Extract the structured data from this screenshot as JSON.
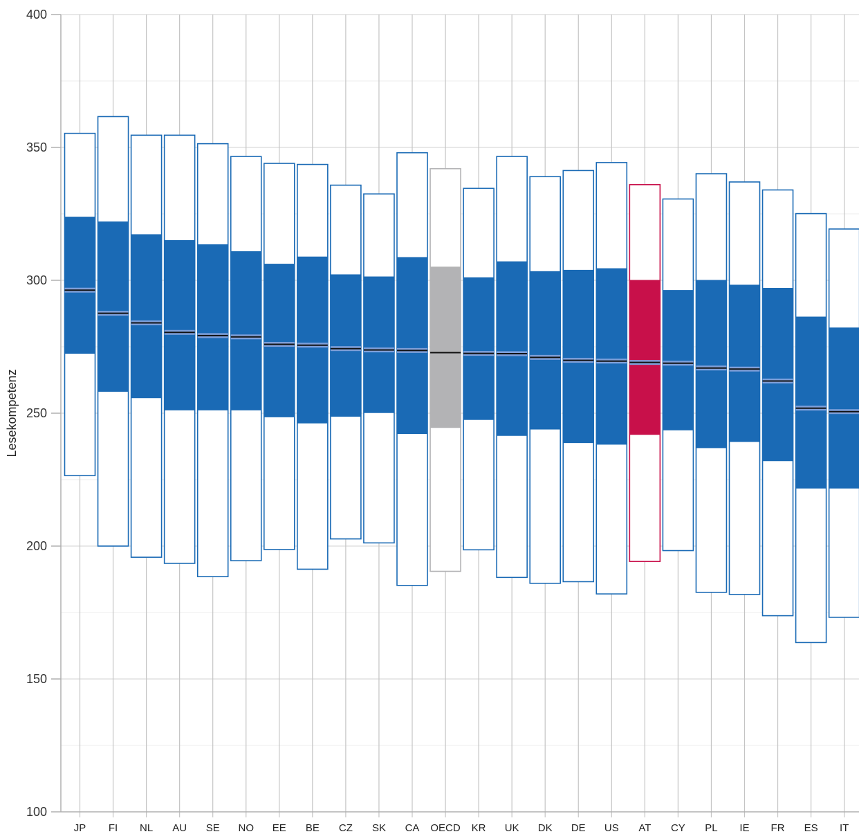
{
  "chart_data": {
    "type": "bar",
    "ylabel": "Lesekompetenz",
    "ylim": [
      100,
      400
    ],
    "yticks": [
      100,
      150,
      200,
      250,
      300,
      350,
      400
    ],
    "grid": true,
    "categories": [
      "JP",
      "FI",
      "NL",
      "AU",
      "SE",
      "NO",
      "EE",
      "BE",
      "CZ",
      "SK",
      "CA",
      "OECD",
      "KR",
      "UK",
      "DK",
      "DE",
      "US",
      "AT",
      "CY",
      "PL",
      "IE",
      "FR",
      "ES",
      "IT"
    ],
    "series": [
      {
        "values": [
          226.5,
          200.0,
          195.8,
          193.5,
          188.5,
          194.5,
          198.7,
          191.3,
          202.7,
          201.2,
          185.2,
          190.5,
          198.6,
          188.2,
          186.0,
          186.6,
          182.0,
          194.2,
          198.3,
          182.6,
          181.8,
          173.8,
          163.7,
          173.2
        ]
      },
      {
        "values": [
          272.5,
          258.2,
          255.8,
          251.2,
          251.2,
          251.2,
          248.6,
          246.3,
          248.8,
          250.2,
          242.3,
          244.6,
          247.6,
          241.6,
          244.0,
          238.9,
          238.3,
          242.0,
          243.7,
          237.0,
          239.3,
          232.1,
          221.8,
          221.8
        ]
      },
      {
        "values": [
          296.3,
          287.6,
          284.0,
          280.4,
          279.2,
          278.7,
          275.9,
          275.6,
          274.3,
          273.8,
          273.6,
          272.8,
          272.5,
          272.4,
          271.0,
          269.9,
          269.6,
          269.1,
          268.8,
          267.0,
          266.6,
          262.1,
          251.9,
          250.6
        ]
      },
      {
        "values": [
          323.8,
          322.0,
          317.2,
          315.0,
          313.4,
          310.8,
          306.1,
          308.8,
          302.1,
          301.3,
          308.6,
          305.0,
          301.0,
          307.0,
          303.3,
          303.8,
          304.4,
          300.0,
          296.2,
          300.0,
          298.2,
          297.0,
          286.2,
          282.1
        ]
      },
      {
        "values": [
          355.3,
          361.6,
          354.6,
          354.6,
          351.4,
          346.6,
          344.0,
          343.6,
          335.8,
          332.5,
          348.0,
          342.0,
          334.6,
          346.6,
          339.0,
          341.3,
          344.3,
          336.0,
          330.6,
          340.1,
          337.0,
          334.0,
          325.1,
          319.3
        ]
      }
    ],
    "colors": {
      "country": "#1a6ab5",
      "oecd_fill": "#b3b3b5",
      "oecd_outline": "#b3b3b5",
      "highlight": "#c8104a",
      "ci_band": "#7fa0da",
      "mean_line": "#111111",
      "grid": "#d8d8d8",
      "axis": "#b0b0b0"
    }
  }
}
